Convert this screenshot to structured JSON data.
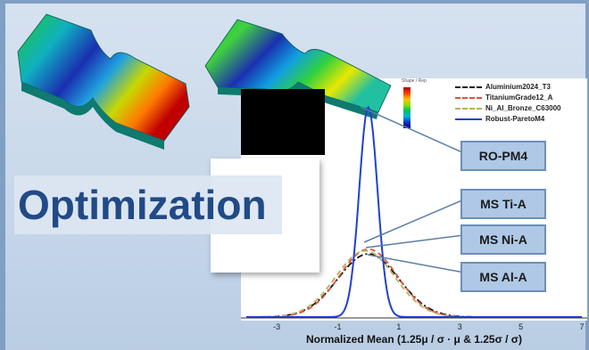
{
  "title": "Optimization",
  "callouts": [
    {
      "id": "ro-pm4",
      "label": "RO-PM4"
    },
    {
      "id": "ms-ti-a",
      "label": "MS Ti-A"
    },
    {
      "id": "ms-ni-a",
      "label": "MS Ni-A"
    },
    {
      "id": "ms-al-a",
      "label": "MS Al-A"
    }
  ],
  "chart_data": {
    "type": "line",
    "xlabel_prefix": "Normalized Mean",
    "xlabel_formula": "(1.25μ",
    "xlabel_full": "Normalized Mean  (1.25μ / σ · μ & 1.25σ / σ)",
    "xlim": [
      -4,
      7
    ],
    "ticks": [
      "-3",
      "-1",
      "1",
      "3",
      "5",
      "7"
    ],
    "tick_values": [
      -3,
      -1,
      1,
      3,
      5,
      7
    ],
    "series": [
      {
        "name": "Aluminium2024_T3",
        "color": "#111111",
        "style": "dash-dot",
        "mean": 0.0,
        "sd": 1.0,
        "peak": 0.4
      },
      {
        "name": "TitaniumGrade12_A",
        "color": "#e0503a",
        "style": "dashed",
        "mean": 0.0,
        "sd": 0.95,
        "peak": 0.43
      },
      {
        "name": "Ni_Al_Bronze_C63000",
        "color": "#b8b060",
        "style": "dashed",
        "mean": -0.1,
        "sd": 0.97,
        "peak": 0.42
      },
      {
        "name": "Robust-ParetoM4",
        "color": "#2040d0",
        "style": "solid",
        "mean": 0.0,
        "sd": 0.3,
        "peak": 1.33
      }
    ]
  },
  "colorbar_label": "Shape / Rep"
}
